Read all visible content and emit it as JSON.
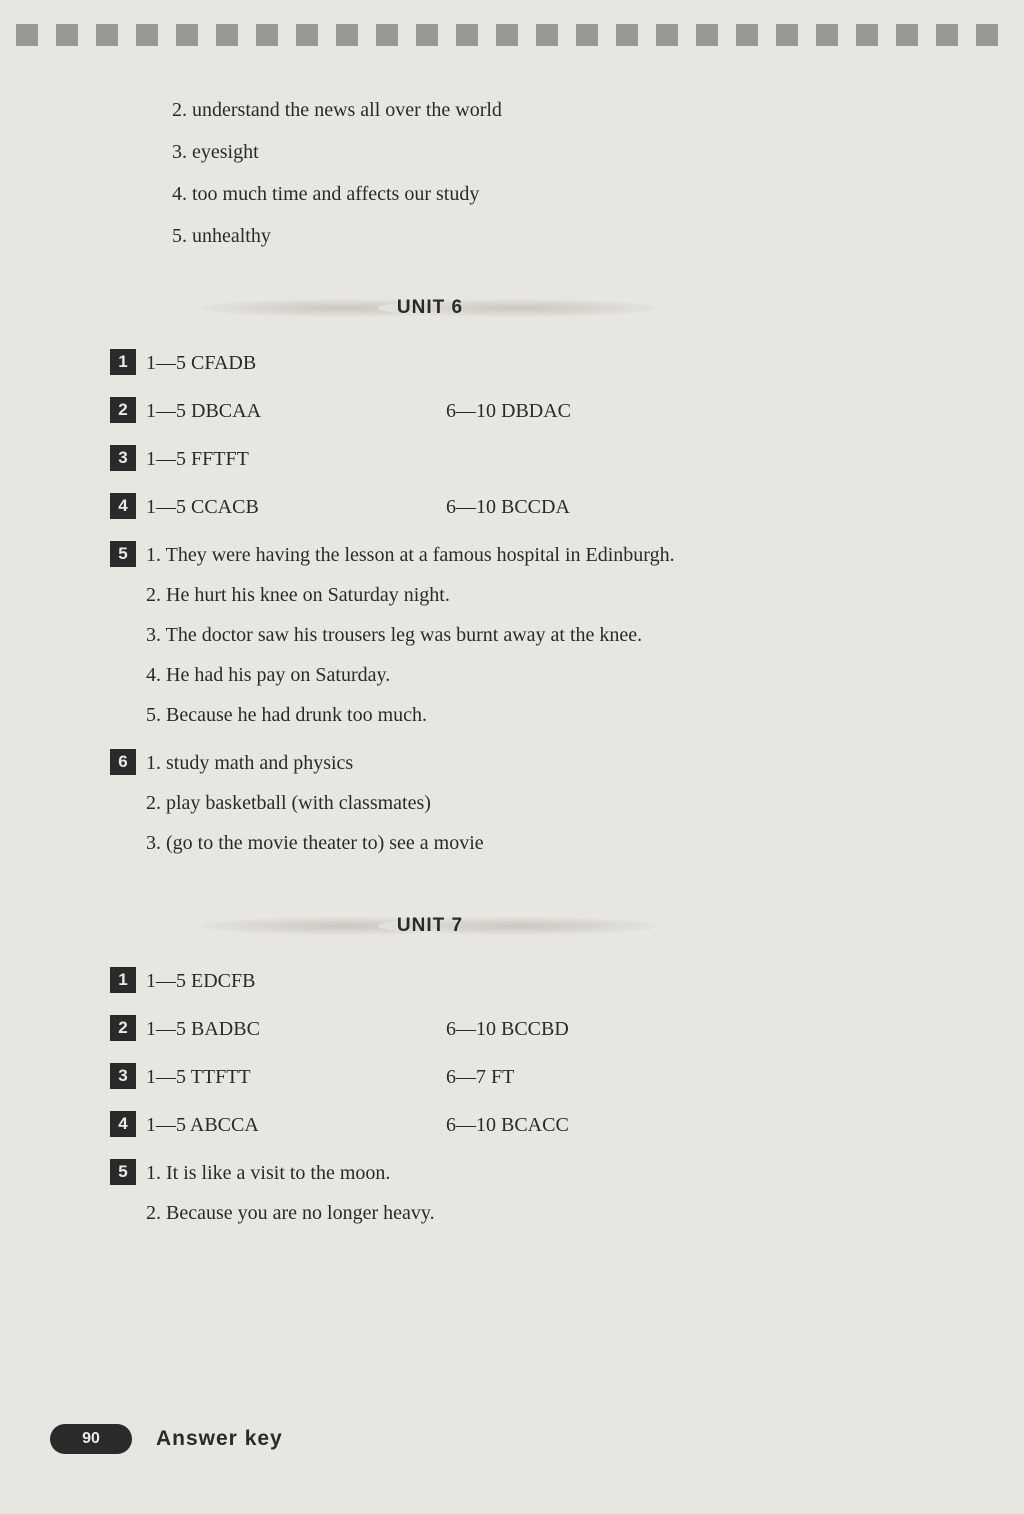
{
  "top_squares_count": 25,
  "intro_items": [
    "2. understand the news all over the world",
    "3. eyesight",
    "4. too much time and affects our study",
    "5. unhealthy"
  ],
  "unit6": {
    "title": "UNIT 6",
    "sections": [
      {
        "num": "1",
        "col1": "1—5 CFADB",
        "col2": ""
      },
      {
        "num": "2",
        "col1": "1—5 DBCAA",
        "col2": "6—10 DBDAC"
      },
      {
        "num": "3",
        "col1": "1—5 FFTFT",
        "col2": ""
      },
      {
        "num": "4",
        "col1": "1—5 CCACB",
        "col2": "6—10 BCCDA"
      },
      {
        "num": "5",
        "items": [
          "1. They were having the lesson at a famous hospital in Edinburgh.",
          "2. He hurt his knee on Saturday night.",
          "3. The doctor saw his trousers leg was burnt away at the knee.",
          "4. He had his pay on Saturday.",
          "5. Because he had drunk too much."
        ]
      },
      {
        "num": "6",
        "items": [
          "1.  study math and physics",
          "2. play basketball (with classmates)",
          "3. (go to the movie theater to) see a movie"
        ]
      }
    ]
  },
  "unit7": {
    "title": "UNIT 7",
    "sections": [
      {
        "num": "1",
        "col1": "1—5 EDCFB",
        "col2": ""
      },
      {
        "num": "2",
        "col1": "1—5 BADBC",
        "col2": "6—10 BCCBD"
      },
      {
        "num": "3",
        "col1": "1—5 TTFTT",
        "col2": "6—7 FT"
      },
      {
        "num": "4",
        "col1": "1—5 ABCCA",
        "col2": "6—10 BCACC"
      },
      {
        "num": "5",
        "items": [
          "1. It is like a visit to the moon.",
          "2. Because you are no longer heavy."
        ]
      }
    ]
  },
  "footer": {
    "page": "90",
    "label": "Answer key"
  }
}
